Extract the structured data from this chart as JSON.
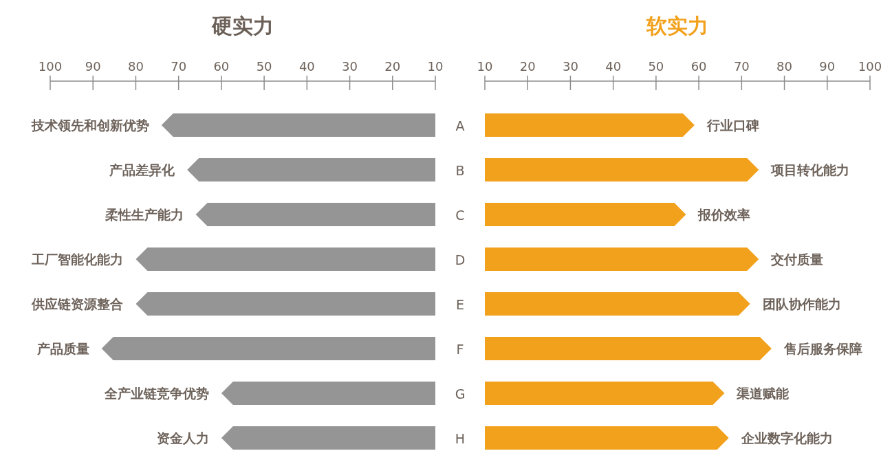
{
  "chart_data": [
    {
      "type": "bar",
      "orientation": "horizontal",
      "title": "硬实力",
      "categories": [
        "技术领先和创新优势",
        "产品差异化",
        "柔性生产能力",
        "工厂智能化能力",
        "供应链资源整合",
        "产品质量",
        "全产业链竞争优势",
        "资金人力"
      ],
      "values": [
        74,
        68,
        66,
        80,
        80,
        88,
        60,
        60
      ],
      "color": "#959595",
      "xlim": [
        100,
        10
      ],
      "xticks": [
        100,
        90,
        80,
        70,
        60,
        50,
        40,
        30,
        20,
        10
      ],
      "annotations": [
        "A",
        "B",
        "C",
        "D",
        "E",
        "F",
        "G",
        "H"
      ]
    },
    {
      "type": "bar",
      "orientation": "horizontal",
      "title": "软实力",
      "categories": [
        "行业口碑",
        "项目转化能力",
        "报价效率",
        "交付质量",
        "团队协作能力",
        "售后服务保障",
        "渠道赋能",
        "企业数字化能力"
      ],
      "values": [
        59,
        74,
        57,
        74,
        72,
        77,
        66,
        67
      ],
      "color": "#f2a11c",
      "xlim": [
        10,
        100
      ],
      "xticks": [
        10,
        20,
        30,
        40,
        50,
        60,
        70,
        80,
        90,
        100
      ]
    }
  ]
}
